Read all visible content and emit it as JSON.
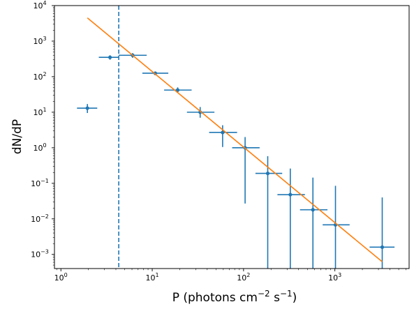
{
  "chart_data": {
    "type": "scatter",
    "xlabel": {
      "main": "P (photons cm",
      "exp1": "−2",
      "mid": " s",
      "exp2": "−1",
      "close": ")"
    },
    "ylabel": "dN/dP",
    "xscale": "log",
    "yscale": "log",
    "xlim": [
      0.85,
      6500
    ],
    "ylim": [
      0.0004,
      10000
    ],
    "x_ticks": [
      {
        "value": 1,
        "base": "10",
        "exp": "0"
      },
      {
        "value": 10,
        "base": "10",
        "exp": "1"
      },
      {
        "value": 100,
        "base": "10",
        "exp": "2"
      },
      {
        "value": 1000,
        "base": "10",
        "exp": "3"
      }
    ],
    "y_ticks": [
      {
        "value": 0.001,
        "base": "10",
        "exp": "−3"
      },
      {
        "value": 0.01,
        "base": "10",
        "exp": "−2"
      },
      {
        "value": 0.1,
        "base": "10",
        "exp": "−1"
      },
      {
        "value": 1,
        "base": "10",
        "exp": "0"
      },
      {
        "value": 10,
        "base": "10",
        "exp": "1"
      },
      {
        "value": 100,
        "base": "10",
        "exp": "2"
      },
      {
        "value": 1000,
        "base": "10",
        "exp": "3"
      },
      {
        "value": 10000,
        "base": "10",
        "exp": "4"
      }
    ],
    "series": [
      {
        "kind": "errorbar",
        "color": "#1f77b4",
        "points": [
          {
            "x": 1.95,
            "y": 13,
            "xerr": [
              1.5,
              2.5
            ],
            "yerr": [
              9.5,
              17
            ]
          },
          {
            "x": 3.45,
            "y": 350,
            "xerr": [
              2.6,
              4.3
            ],
            "yerr": [
              300,
              400
            ]
          },
          {
            "x": 6.1,
            "y": 400,
            "xerr": [
              4.3,
              8.7
            ],
            "yerr": [
              340,
              460
            ]
          },
          {
            "x": 10.8,
            "y": 125,
            "xerr": [
              7.8,
              15
            ],
            "yerr": [
              110,
              140
            ]
          },
          {
            "x": 19,
            "y": 42,
            "xerr": [
              13.5,
              27
            ],
            "yerr": [
              35,
              50
            ]
          },
          {
            "x": 33.5,
            "y": 10,
            "xerr": [
              24,
              48
            ],
            "yerr": [
              7,
              14
            ]
          },
          {
            "x": 59,
            "y": 2.7,
            "xerr": [
              42,
              85
            ],
            "yerr": [
              1.05,
              4.3
            ]
          },
          {
            "x": 104,
            "y": 1.0,
            "xerr": [
              75,
              150
            ],
            "yerr": [
              0.027,
              2.0
            ]
          },
          {
            "x": 184,
            "y": 0.19,
            "xerr": [
              135,
              265
            ],
            "yerr": [
              0.0004,
              0.58
            ]
          },
          {
            "x": 325,
            "y": 0.048,
            "xerr": [
              235,
              470
            ],
            "yerr": [
              0.0004,
              0.26
            ]
          },
          {
            "x": 575,
            "y": 0.018,
            "xerr": [
              415,
              830
            ],
            "yerr": [
              0.0004,
              0.145
            ]
          },
          {
            "x": 1015,
            "y": 0.0068,
            "xerr": [
              735,
              1450
            ],
            "yerr": [
              0.0004,
              0.085
            ]
          },
          {
            "x": 3300,
            "y": 0.0016,
            "xerr": [
              2400,
              4500
            ],
            "yerr": [
              0.0004,
              0.04
            ]
          }
        ]
      },
      {
        "kind": "line",
        "color": "#ff7f0e",
        "points": [
          {
            "x": 1.95,
            "y": 4500
          },
          {
            "x": 3300,
            "y": 0.00062
          }
        ]
      }
    ],
    "vline": {
      "x": 4.3,
      "color": "#1f77b4",
      "style": "dashed"
    }
  }
}
